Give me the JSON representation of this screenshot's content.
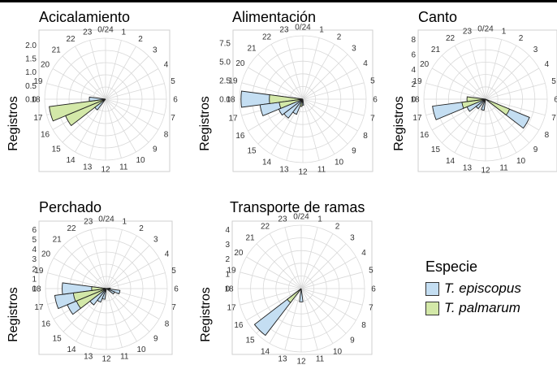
{
  "chart_data": [
    {
      "type": "polar-bar",
      "title": "Acicalamiento",
      "ylabel": "Registros",
      "rlim": [
        0,
        2.25
      ],
      "rticks": [
        "0.0",
        "0.5",
        "1.0",
        "1.5",
        "2.0"
      ],
      "hour_labels": [
        "0/24",
        "1",
        "2",
        "3",
        "4",
        "5",
        "6",
        "7",
        "8",
        "9",
        "10",
        "11",
        "12",
        "13",
        "14",
        "15",
        "16",
        "17",
        "18",
        "19",
        "20",
        "21",
        "22",
        "23"
      ],
      "series": [
        {
          "name": "T. episcopus",
          "values": {
            "15": 0.5,
            "18": 0.6
          }
        },
        {
          "name": "T. palmarum",
          "values": {
            "16": 1.6,
            "17": 2.1
          }
        }
      ]
    },
    {
      "type": "polar-bar",
      "title": "Alimentación",
      "ylabel": "Registros",
      "rlim": [
        0,
        8.5
      ],
      "rticks": [
        "0.0",
        "2.5",
        "5.0",
        "7.5"
      ],
      "hour_labels": [
        "0/24",
        "1",
        "2",
        "3",
        "4",
        "5",
        "6",
        "7",
        "8",
        "9",
        "10",
        "11",
        "12",
        "13",
        "14",
        "15",
        "16",
        "17",
        "18",
        "19",
        "20",
        "21",
        "22",
        "23"
      ],
      "series": [
        {
          "name": "T. episcopus",
          "values": {
            "12": 0.8,
            "14": 2.2,
            "15": 3.2,
            "16": 3.5,
            "17": 5.8,
            "18": 8.3
          }
        },
        {
          "name": "T. palmarum",
          "values": {
            "13": 1.0,
            "17": 3.2,
            "18": 4.5
          }
        }
      ]
    },
    {
      "type": "polar-bar",
      "title": "Canto",
      "ylabel": "Registros",
      "rlim": [
        0,
        8.3
      ],
      "rticks": [
        "0",
        "2",
        "4",
        "6",
        "8"
      ],
      "hour_labels": [
        "0/24",
        "1",
        "2",
        "3",
        "4",
        "5",
        "6",
        "7",
        "8",
        "9",
        "10",
        "11",
        "12",
        "13",
        "14",
        "15",
        "16",
        "17",
        "18",
        "19",
        "20",
        "21",
        "22",
        "23"
      ],
      "series": [
        {
          "name": "T. episcopus",
          "values": {
            "8": 6.4,
            "13": 1.5,
            "15": 1.6,
            "16": 2.7,
            "17": 7.2
          }
        },
        {
          "name": "T. palmarum",
          "values": {
            "8": 3.5,
            "17": 3.2,
            "18": 2.5
          }
        }
      ]
    },
    {
      "type": "polar-bar",
      "title": "Perchado",
      "ylabel": "Registros",
      "rlim": [
        0,
        6.2
      ],
      "rticks": [
        "0",
        "1",
        "2",
        "3",
        "4",
        "5",
        "6"
      ],
      "hour_labels": [
        "0/24",
        "1",
        "2",
        "3",
        "4",
        "5",
        "6",
        "7",
        "8",
        "9",
        "10",
        "11",
        "12",
        "13",
        "14",
        "15",
        "16",
        "17",
        "18",
        "19",
        "20",
        "21",
        "22",
        "23"
      ],
      "series": [
        {
          "name": "T. episcopus",
          "values": {
            "6": 0.4,
            "7": 1.4,
            "8": 0.9,
            "13": 1.1,
            "14": 1.5,
            "15": 2.1,
            "16": 4.3,
            "17": 5.3,
            "18": 4.5
          }
        },
        {
          "name": "T. palmarum",
          "values": {
            "16": 3.3,
            "17": 3.4,
            "18": 1.5
          }
        }
      ]
    },
    {
      "type": "polar-bar",
      "title": "Transporte de ramas",
      "ylabel": "Registros",
      "rlim": [
        0,
        4.3
      ],
      "rticks": [
        "0",
        "1",
        "2",
        "3",
        "4"
      ],
      "hour_labels": [
        "0/24",
        "1",
        "2",
        "3",
        "4",
        "5",
        "6",
        "7",
        "8",
        "9",
        "10",
        "11",
        "12",
        "13",
        "14",
        "15",
        "16",
        "17",
        "18",
        "19",
        "20",
        "21",
        "22",
        "23"
      ],
      "series": [
        {
          "name": "T. episcopus",
          "values": {
            "12": 0.9,
            "15": 4.0
          }
        },
        {
          "name": "T. palmarum",
          "values": {
            "15": 1.2
          }
        }
      ]
    }
  ],
  "legend": {
    "title": "Especie",
    "items": [
      {
        "label": "T. episcopus",
        "color": "#c4def2"
      },
      {
        "label": "T. palmarum",
        "color": "#d3e8a8"
      }
    ]
  },
  "colors": {
    "T. episcopus": "#c4def2",
    "T. palmarum": "#d3e8a8",
    "grid": "#d9d9d9",
    "panel_border": "#cfcfcf"
  }
}
